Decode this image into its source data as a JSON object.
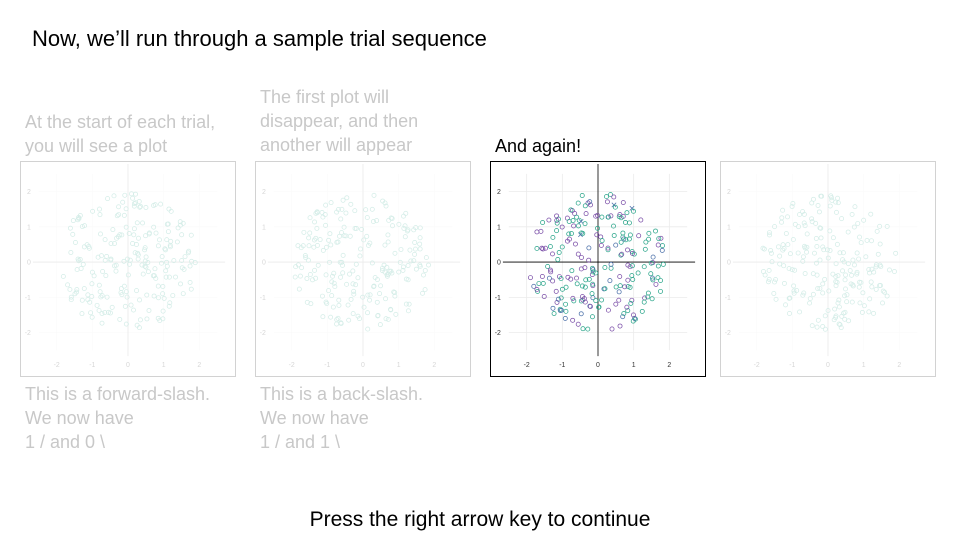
{
  "heading": "Now, we’ll run through a sample trial sequence",
  "captions_above": [
    "At the start of each trial,\nyou will see a plot",
    "The first plot will\ndisappear, and then\nanother will appear",
    "And again!",
    ""
  ],
  "captions_below": [
    "This is a forward-slash.\nWe now have\n1 / and 0 \\",
    "This is a back-slash.\nWe now have\n1 / and 1 \\"
  ],
  "footer": "Press the right arrow key to continue",
  "colors": {
    "faded_text": "#c8c8c8",
    "series_a": "#2aa58a",
    "series_b": "#7b4fa8",
    "series_c": "#4a6fa8",
    "grid": "#ebebeb",
    "axis_line": "#000000"
  },
  "chart_data": [
    {
      "type": "scatter",
      "panel": 1,
      "state": "faded",
      "xlim": [
        -2.5,
        2.5
      ],
      "ylim": [
        -2.5,
        2.5
      ],
      "x_ticks": [
        -2,
        -1,
        0,
        1,
        2
      ],
      "y_ticks": [
        2,
        1,
        0,
        -1,
        -2
      ],
      "grid": true,
      "marker": "circle",
      "point_count": 210
    },
    {
      "type": "scatter",
      "panel": 2,
      "state": "faded",
      "xlim": [
        -2.5,
        2.5
      ],
      "ylim": [
        -2.5,
        2.5
      ],
      "x_ticks": [
        -2,
        -1,
        0,
        1,
        2
      ],
      "y_ticks": [
        2,
        1,
        0,
        -1,
        -2
      ],
      "grid": true,
      "marker": "circle",
      "point_count": 210
    },
    {
      "type": "scatter",
      "panel": 3,
      "state": "active",
      "xlim": [
        -2.5,
        2.5
      ],
      "ylim": [
        -2.5,
        2.5
      ],
      "x_ticks": [
        -2,
        -1,
        0,
        1,
        2
      ],
      "y_ticks": [
        2,
        1,
        0,
        -1,
        -2
      ],
      "grid": true,
      "marker": "circle and cross",
      "point_count": 230
    },
    {
      "type": "scatter",
      "panel": 4,
      "state": "faded",
      "xlim": [
        -2.5,
        2.5
      ],
      "ylim": [
        -2.5,
        2.5
      ],
      "x_ticks": [
        -2,
        -1,
        0,
        1,
        2
      ],
      "y_ticks": [
        2,
        1,
        0,
        -1,
        -2
      ],
      "grid": true,
      "marker": "circle",
      "point_count": 210
    }
  ]
}
